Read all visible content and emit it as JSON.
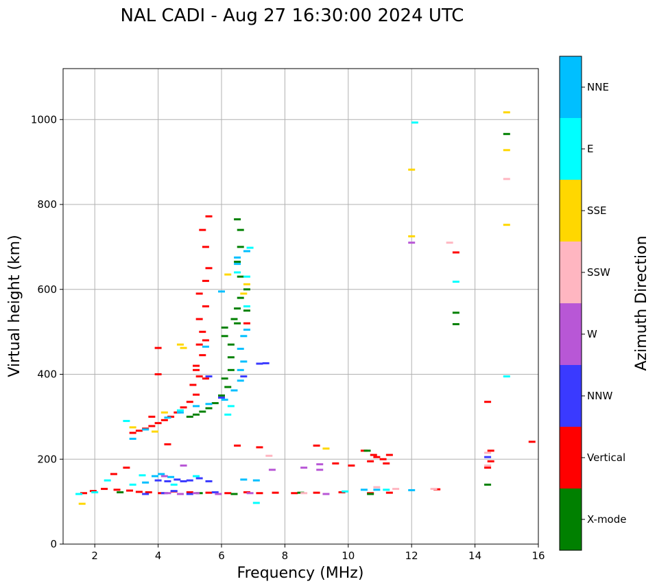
{
  "chart_data": {
    "type": "scatter",
    "title": "NAL CADI - Aug 27 16:30:00 2024 UTC",
    "xlabel": "Frequency (MHz)",
    "ylabel": "Virtual height (km)",
    "xlim": [
      1,
      16
    ],
    "ylim": [
      0,
      1120
    ],
    "xticks": [
      2,
      4,
      6,
      8,
      10,
      12,
      14,
      16
    ],
    "yticks": [
      0,
      200,
      400,
      600,
      800,
      1000
    ],
    "grid": true,
    "colorbar": {
      "label": "Azimuth Direction",
      "categories": [
        {
          "name": "X-mode",
          "color": "#008000"
        },
        {
          "name": "Vertical",
          "color": "#ff0000"
        },
        {
          "name": "NNW",
          "color": "#3a3aff"
        },
        {
          "name": "W",
          "color": "#b857d6"
        },
        {
          "name": "SSW",
          "color": "#ffb6c1"
        },
        {
          "name": "SSE",
          "color": "#ffd700"
        },
        {
          "name": "E",
          "color": "#00ffff"
        },
        {
          "name": "NNE",
          "color": "#00bfff"
        }
      ]
    },
    "series": [
      {
        "name": "Vertical",
        "points": [
          [
            1.65,
            120
          ],
          [
            1.95,
            125
          ],
          [
            2.3,
            130
          ],
          [
            2.7,
            128
          ],
          [
            3.1,
            126
          ],
          [
            3.4,
            123
          ],
          [
            3.7,
            122
          ],
          [
            4.1,
            120
          ],
          [
            4.5,
            124
          ],
          [
            5.0,
            122
          ],
          [
            5.6,
            121
          ],
          [
            6.2,
            120
          ],
          [
            6.8,
            122
          ],
          [
            7.2,
            120
          ],
          [
            7.7,
            121
          ],
          [
            8.3,
            120
          ],
          [
            9.0,
            121
          ],
          [
            9.8,
            122
          ],
          [
            10.7,
            120
          ],
          [
            11.3,
            121
          ],
          [
            12.8,
            129
          ],
          [
            3.2,
            262
          ],
          [
            3.4,
            267
          ],
          [
            3.6,
            272
          ],
          [
            3.8,
            278
          ],
          [
            4.0,
            285
          ],
          [
            4.2,
            292
          ],
          [
            4.4,
            300
          ],
          [
            4.6,
            310
          ],
          [
            4.8,
            322
          ],
          [
            5.0,
            335
          ],
          [
            5.2,
            352
          ],
          [
            5.1,
            375
          ],
          [
            5.3,
            395
          ],
          [
            5.2,
            420
          ],
          [
            5.4,
            445
          ],
          [
            5.3,
            470
          ],
          [
            5.4,
            500
          ],
          [
            5.3,
            530
          ],
          [
            5.5,
            560
          ],
          [
            5.3,
            590
          ],
          [
            5.5,
            620
          ],
          [
            5.6,
            650
          ],
          [
            5.5,
            700
          ],
          [
            5.4,
            740
          ],
          [
            5.6,
            772
          ],
          [
            5.5,
            390
          ],
          [
            4.0,
            400
          ],
          [
            4.0,
            462
          ],
          [
            3.8,
            300
          ],
          [
            5.2,
            410
          ],
          [
            5.5,
            480
          ],
          [
            10.7,
            195
          ],
          [
            10.9,
            205
          ],
          [
            11.1,
            200
          ],
          [
            11.3,
            210
          ],
          [
            11.2,
            190
          ],
          [
            10.8,
            210
          ],
          [
            10.5,
            220
          ],
          [
            13.4,
            687
          ],
          [
            14.4,
            335
          ],
          [
            14.4,
            180
          ],
          [
            14.5,
            195
          ],
          [
            14.5,
            220
          ],
          [
            15.8,
            241
          ],
          [
            6.5,
            232
          ],
          [
            7.2,
            228
          ],
          [
            10.1,
            185
          ],
          [
            9.0,
            232
          ],
          [
            4.3,
            235
          ],
          [
            3.0,
            180
          ],
          [
            2.6,
            165
          ],
          [
            6.8,
            520
          ],
          [
            9.6,
            190
          ]
        ]
      },
      {
        "name": "X-mode",
        "points": [
          [
            5.0,
            300
          ],
          [
            5.2,
            305
          ],
          [
            5.4,
            312
          ],
          [
            5.6,
            320
          ],
          [
            5.8,
            332
          ],
          [
            6.0,
            350
          ],
          [
            6.2,
            370
          ],
          [
            6.1,
            390
          ],
          [
            6.3,
            410
          ],
          [
            6.3,
            440
          ],
          [
            6.3,
            470
          ],
          [
            6.1,
            490
          ],
          [
            6.1,
            510
          ],
          [
            6.4,
            530
          ],
          [
            6.5,
            555
          ],
          [
            6.6,
            580
          ],
          [
            6.8,
            600
          ],
          [
            6.6,
            630
          ],
          [
            6.5,
            665
          ],
          [
            6.6,
            700
          ],
          [
            6.6,
            740
          ],
          [
            6.5,
            765
          ],
          [
            6.8,
            550
          ],
          [
            6.5,
            520
          ],
          [
            13.4,
            545
          ],
          [
            13.4,
            518
          ],
          [
            15.0,
            966
          ],
          [
            5.3,
            120
          ],
          [
            6.4,
            118
          ],
          [
            8.5,
            121
          ],
          [
            10.7,
            118
          ],
          [
            10.6,
            220
          ],
          [
            14.4,
            140
          ],
          [
            2.8,
            122
          ]
        ]
      },
      {
        "name": "NNW",
        "points": [
          [
            4.0,
            150
          ],
          [
            4.3,
            148
          ],
          [
            4.6,
            152
          ],
          [
            5.0,
            150
          ],
          [
            5.3,
            155
          ],
          [
            5.6,
            148
          ],
          [
            4.5,
            125
          ],
          [
            5.0,
            118
          ],
          [
            5.8,
            122
          ],
          [
            3.6,
            118
          ],
          [
            4.2,
            120
          ],
          [
            6.7,
            395
          ],
          [
            7.2,
            425
          ],
          [
            7.4,
            426
          ],
          [
            5.6,
            395
          ],
          [
            4.8,
            148
          ],
          [
            14.4,
            205
          ],
          [
            6.0,
            345
          ]
        ]
      },
      {
        "name": "W",
        "points": [
          [
            4.3,
            120
          ],
          [
            4.7,
            118
          ],
          [
            5.2,
            120
          ],
          [
            5.9,
            118
          ],
          [
            6.9,
            120
          ],
          [
            4.8,
            185
          ],
          [
            8.6,
            180
          ],
          [
            9.1,
            188
          ],
          [
            9.1,
            175
          ],
          [
            12.0,
            710
          ],
          [
            7.6,
            175
          ],
          [
            9.3,
            118
          ],
          [
            4.2,
            160
          ]
        ]
      },
      {
        "name": "SSW",
        "points": [
          [
            13.2,
            710
          ],
          [
            15.0,
            860
          ],
          [
            12.7,
            130
          ],
          [
            10.9,
            134
          ],
          [
            14.4,
            215
          ],
          [
            7.5,
            208
          ],
          [
            8.6,
            120
          ],
          [
            11.5,
            130
          ],
          [
            14.4,
            185
          ]
        ]
      },
      {
        "name": "SSE",
        "points": [
          [
            15.0,
            1017
          ],
          [
            15.0,
            928
          ],
          [
            15.0,
            752
          ],
          [
            12.0,
            882
          ],
          [
            12.0,
            725
          ],
          [
            1.6,
            95
          ],
          [
            6.8,
            612
          ],
          [
            6.7,
            590
          ],
          [
            4.7,
            470
          ],
          [
            4.8,
            462
          ],
          [
            9.3,
            225
          ],
          [
            3.2,
            275
          ],
          [
            6.2,
            635
          ],
          [
            4.2,
            310
          ],
          [
            3.9,
            265
          ]
        ]
      },
      {
        "name": "E",
        "points": [
          [
            12.1,
            993
          ],
          [
            13.4,
            618
          ],
          [
            15.0,
            395
          ],
          [
            1.5,
            118
          ],
          [
            2.0,
            122
          ],
          [
            2.4,
            150
          ],
          [
            3.5,
            162
          ],
          [
            3.2,
            140
          ],
          [
            6.5,
            640
          ],
          [
            6.8,
            630
          ],
          [
            6.8,
            560
          ],
          [
            6.9,
            698
          ],
          [
            7.1,
            97
          ],
          [
            6.3,
            325
          ],
          [
            6.2,
            305
          ],
          [
            4.7,
            315
          ],
          [
            11.2,
            128
          ],
          [
            9.9,
            124
          ],
          [
            5.2,
            160
          ],
          [
            4.5,
            140
          ],
          [
            3.0,
            290
          ]
        ]
      },
      {
        "name": "NNE",
        "points": [
          [
            3.2,
            248
          ],
          [
            3.6,
            270
          ],
          [
            4.3,
            298
          ],
          [
            4.7,
            310
          ],
          [
            5.2,
            325
          ],
          [
            5.6,
            330
          ],
          [
            6.1,
            340
          ],
          [
            6.4,
            362
          ],
          [
            6.6,
            385
          ],
          [
            6.6,
            410
          ],
          [
            6.7,
            430
          ],
          [
            6.6,
            460
          ],
          [
            6.7,
            490
          ],
          [
            6.8,
            505
          ],
          [
            6.5,
            660
          ],
          [
            6.5,
            675
          ],
          [
            6.8,
            690
          ],
          [
            3.9,
            160
          ],
          [
            4.1,
            165
          ],
          [
            4.4,
            158
          ],
          [
            6.7,
            152
          ],
          [
            7.1,
            150
          ],
          [
            3.6,
            145
          ],
          [
            12.0,
            127
          ],
          [
            10.5,
            128
          ],
          [
            10.9,
            128
          ],
          [
            6.0,
            595
          ],
          [
            5.5,
            465
          ]
        ]
      }
    ]
  }
}
